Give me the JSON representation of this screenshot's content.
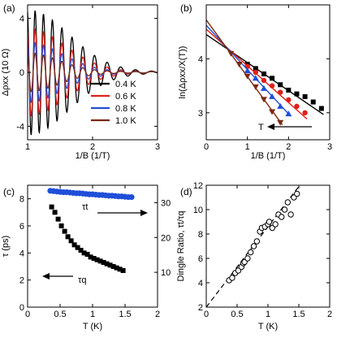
{
  "chart_data": [
    {
      "panel": "(a)",
      "type": "line",
      "xlabel": "1/B (1/T)",
      "ylabel": "Δρxx (10 Ω)",
      "xlim": [
        1,
        3
      ],
      "ylim": [
        -5,
        5
      ],
      "xticks": [
        "1",
        "2",
        "3"
      ],
      "yticks": [
        "-4",
        "0",
        "4"
      ],
      "legend_position": "lower-right",
      "series": [
        {
          "name": "0.4 K",
          "color": "#000000",
          "amplitude": 4.6,
          "decay": 1.05
        },
        {
          "name": "0.6 K",
          "color": "#e0201b",
          "amplitude": 3.2,
          "decay": 1.25
        },
        {
          "name": "0.8 K",
          "color": "#1f4fd8",
          "amplitude": 2.2,
          "decay": 1.5
        },
        {
          "name": "1.0 K",
          "color": "#7a2a10",
          "amplitude": 1.4,
          "decay": 1.8
        }
      ],
      "oscillation_period": 0.118
    },
    {
      "panel": "(b)",
      "type": "scatter",
      "xlabel": "1/B (1/T)",
      "ylabel": "ln(Δρxx/X(T))",
      "xlim": [
        0,
        3
      ],
      "ylim": [
        2.5,
        5
      ],
      "xticks": [
        "0",
        "1",
        "2",
        "3"
      ],
      "yticks": [
        "3",
        "4"
      ],
      "annotation": "T",
      "series": [
        {
          "color": "#000000",
          "marker": "square",
          "fit": [
            4.45,
            -0.52
          ],
          "x": [
            1.0,
            1.2,
            1.4,
            1.6,
            1.8,
            2.0,
            2.2,
            2.4,
            2.6,
            2.8
          ],
          "y": [
            3.9,
            3.82,
            3.72,
            3.64,
            3.52,
            3.42,
            3.35,
            3.3,
            3.2,
            3.08
          ]
        },
        {
          "color": "#e0201b",
          "marker": "circle",
          "fit": [
            4.55,
            -0.68
          ],
          "x": [
            1.0,
            1.2,
            1.4,
            1.6,
            1.8,
            2.0,
            2.2,
            2.4
          ],
          "y": [
            3.86,
            3.75,
            3.6,
            3.5,
            3.38,
            3.24,
            3.12,
            3.0
          ]
        },
        {
          "color": "#1f4fd8",
          "marker": "triangle-up",
          "fit": [
            4.62,
            -0.82
          ],
          "x": [
            1.0,
            1.2,
            1.4,
            1.6,
            1.8,
            2.0
          ],
          "y": [
            3.78,
            3.64,
            3.45,
            3.3,
            3.12,
            2.98
          ]
        },
        {
          "color": "#7a2a10",
          "marker": "triangle-down",
          "fit": [
            4.72,
            -1.05
          ],
          "x": [
            0.6,
            0.8,
            1.0,
            1.2,
            1.4,
            1.6,
            1.8
          ],
          "y": [
            4.1,
            3.9,
            3.68,
            3.48,
            3.25,
            3.02,
            2.82
          ]
        }
      ]
    },
    {
      "panel": "(c)",
      "type": "scatter",
      "xlabel": "T (K)",
      "ylabel": "τ (ps)",
      "xlim": [
        0,
        2
      ],
      "ylim": [
        0,
        9
      ],
      "ylim_right": [
        0,
        35
      ],
      "xticks": [
        "0",
        "0.5",
        "1",
        "1.5",
        "2"
      ],
      "yticks": [
        "0",
        "2",
        "4",
        "6",
        "8"
      ],
      "yticks_right": [
        "10",
        "20",
        "30"
      ],
      "series": [
        {
          "name": "τt",
          "color": "#1f4fd8",
          "marker": "circle",
          "axis": "right",
          "x": [
            0.35,
            0.4,
            0.45,
            0.5,
            0.55,
            0.6,
            0.65,
            0.7,
            0.75,
            0.8,
            0.85,
            0.9,
            0.95,
            1.0,
            1.05,
            1.1,
            1.15,
            1.2,
            1.25,
            1.3,
            1.35,
            1.4,
            1.45,
            1.5,
            1.55,
            1.6
          ],
          "y": [
            33.4,
            33.3,
            33.2,
            33.1,
            33.0,
            33.0,
            32.9,
            32.8,
            32.7,
            32.7,
            32.6,
            32.5,
            32.4,
            32.4,
            32.3,
            32.2,
            32.2,
            32.1,
            32.0,
            32.0,
            31.9,
            31.8,
            31.8,
            31.7,
            31.6,
            31.6
          ]
        },
        {
          "name": "τq",
          "color": "#000000",
          "marker": "square",
          "axis": "left",
          "x": [
            0.37,
            0.42,
            0.47,
            0.52,
            0.57,
            0.62,
            0.67,
            0.72,
            0.77,
            0.82,
            0.87,
            0.92,
            0.97,
            1.02,
            1.07,
            1.12,
            1.17,
            1.22,
            1.27,
            1.32,
            1.37,
            1.42,
            1.47
          ],
          "y": [
            7.4,
            7.0,
            6.5,
            6.0,
            5.6,
            5.2,
            4.9,
            4.6,
            4.4,
            4.2,
            4.0,
            3.9,
            3.7,
            3.6,
            3.5,
            3.4,
            3.3,
            3.2,
            3.1,
            3.0,
            2.9,
            2.8,
            2.7
          ]
        }
      ],
      "labels": {
        "tau_t": "τt",
        "tau_q": "τq"
      }
    },
    {
      "panel": "(d)",
      "type": "scatter",
      "xlabel": "T (K)",
      "ylabel": "Dingle Ratio, τt/τq",
      "xlim": [
        0,
        2
      ],
      "ylim": [
        2,
        12
      ],
      "xticks": [
        "0",
        "0.5",
        "1",
        "1.5",
        "2"
      ],
      "yticks": [
        "2",
        "4",
        "6",
        "8",
        "10",
        "12"
      ],
      "fit_line": {
        "intercept": 2.0,
        "slope": 6.6
      },
      "series": [
        {
          "color": "#000000",
          "marker": "open-circle",
          "x": [
            0.37,
            0.42,
            0.47,
            0.52,
            0.57,
            0.6,
            0.62,
            0.67,
            0.72,
            0.77,
            0.82,
            0.87,
            0.9,
            0.95,
            1.0,
            1.02,
            1.07,
            1.12,
            1.17,
            1.22,
            1.27,
            1.32,
            1.37,
            1.42,
            1.47
          ],
          "y": [
            4.2,
            4.4,
            4.8,
            5.0,
            5.3,
            5.6,
            5.7,
            6.0,
            6.5,
            7.0,
            7.4,
            8.2,
            8.5,
            8.6,
            8.8,
            9.0,
            8.5,
            8.8,
            9.6,
            9.4,
            10.0,
            10.6,
            9.6,
            11.0,
            11.3
          ]
        }
      ]
    }
  ]
}
